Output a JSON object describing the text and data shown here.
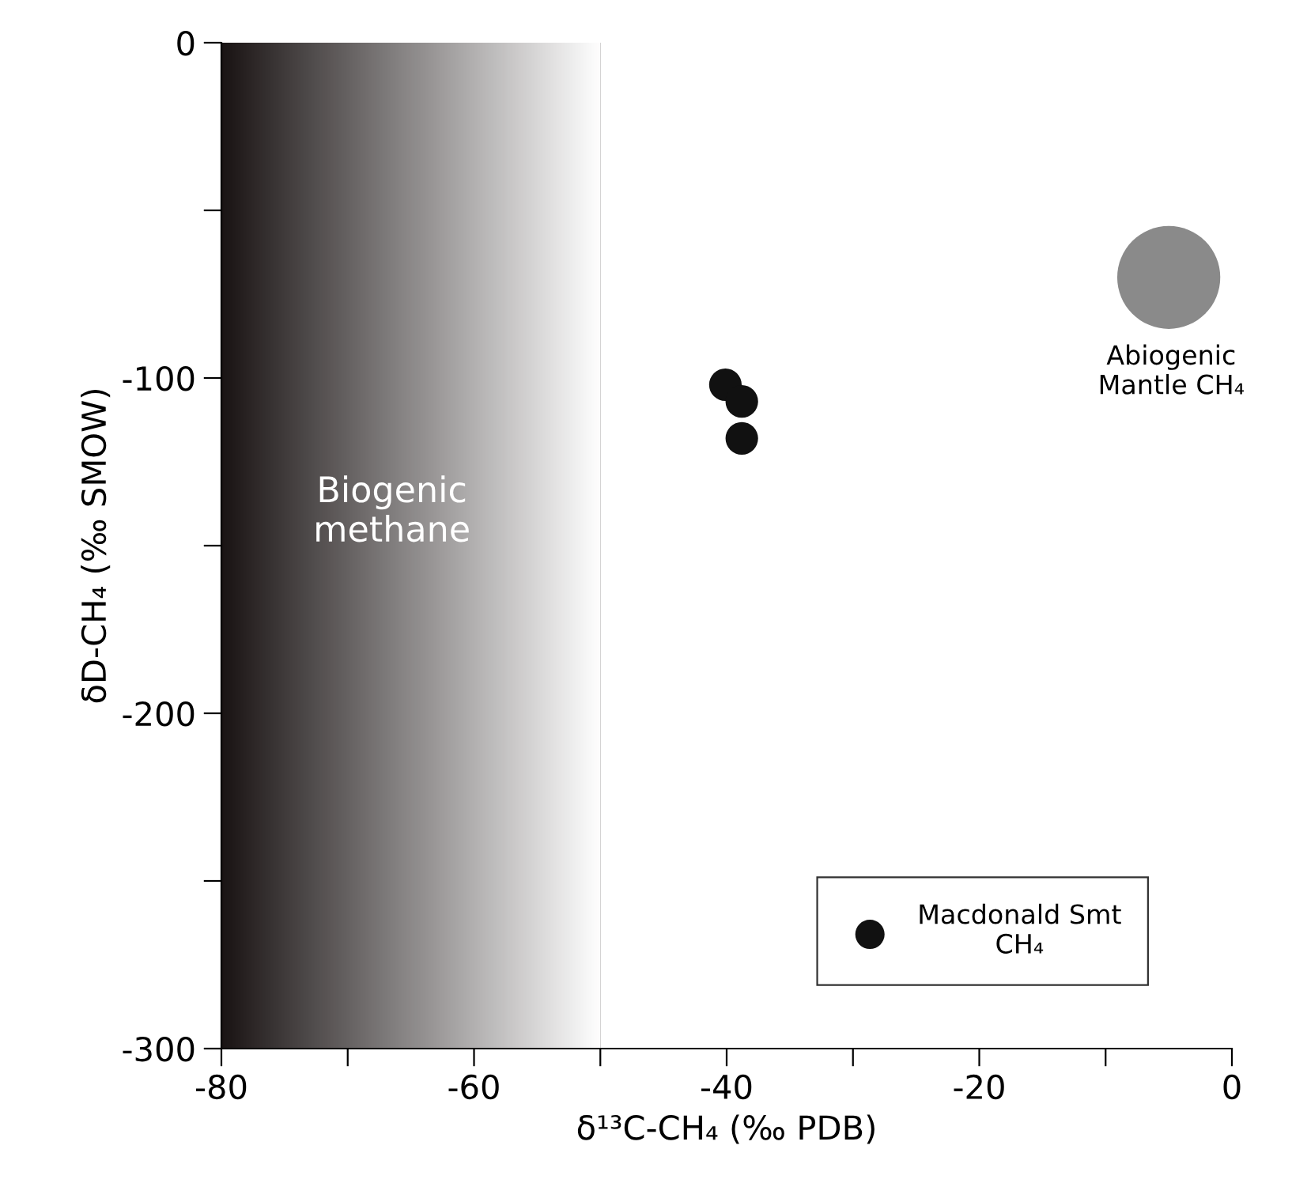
{
  "chart_data": {
    "type": "scatter",
    "xlabel": "δ¹³C-CH₄ (‰ PDB)",
    "ylabel": "δD-CH₄ (‰ SMOW)",
    "xlim": [
      -80,
      0
    ],
    "ylim": [
      -300,
      0
    ],
    "xticks": [
      -80,
      {
        "value": -70,
        "label": null
      },
      -60,
      {
        "value": -50,
        "label": null
      },
      -40,
      {
        "value": -30,
        "label": null
      },
      -20,
      {
        "value": -10,
        "label": null
      },
      0
    ],
    "yticks": [
      -300,
      {
        "value": -250,
        "label": null
      },
      -200,
      {
        "value": -150,
        "label": null
      },
      -100,
      {
        "value": -50,
        "label": null
      },
      0
    ],
    "grid": false,
    "legend": "bottom right",
    "marker": "circle",
    "series": [
      {
        "name": "Macdonald Smt\nCH₄",
        "color": "#111111",
        "x": [
          -40.1,
          -38.8,
          -38.8
        ],
        "values": [
          -102,
          -107,
          -118
        ]
      },
      {
        "color": "#8a8a8a",
        "x": [
          -5
        ],
        "values": [
          -70
        ]
      }
    ],
    "bands": [
      {
        "axis": "x",
        "from": -80,
        "to": -50,
        "label": "Biogenic\nmethane",
        "color": "#1a1414"
      }
    ],
    "annotations": [
      "Abiogenic\nMantle CH₄"
    ]
  }
}
